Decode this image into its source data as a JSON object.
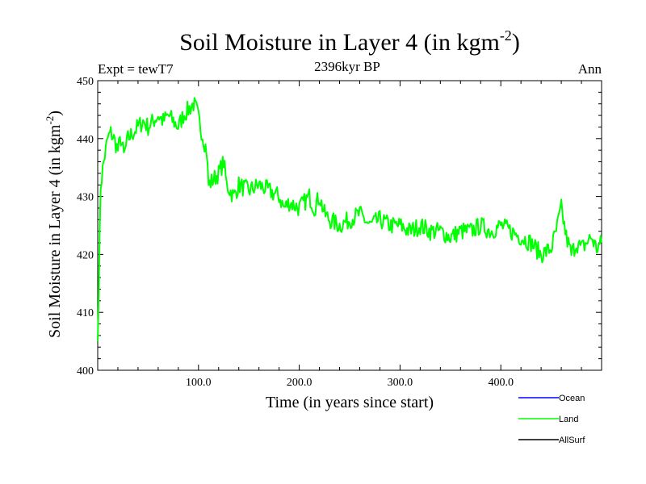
{
  "chart_data": {
    "type": "line",
    "title": "Soil Moisture in Layer 4 (in kgm",
    "title_sup": "-2",
    "title_close": ")",
    "header_left": "Expt = tewT7",
    "header_center": "2396kyr BP",
    "header_right": "Ann",
    "xlabel": "Time (in years since start)",
    "ylabel": "Soil Moisture in Layer 4 (in kgm",
    "ylabel_sup": "-2",
    "ylabel_close": ")",
    "xlim": [
      0,
      500
    ],
    "ylim": [
      400,
      450
    ],
    "xticks": [
      100,
      200,
      300,
      400
    ],
    "xtick_labels": [
      "100.0",
      "200.0",
      "300.0",
      "400.0"
    ],
    "yticks": [
      400,
      410,
      420,
      430,
      440,
      450
    ],
    "ytick_labels": [
      "400",
      "410",
      "420",
      "430",
      "440",
      "450"
    ],
    "series": [
      {
        "name": "Ocean",
        "color": "#0000ff",
        "values": []
      },
      {
        "name": "Land",
        "color": "#00ff00",
        "points": [
          [
            0,
            405
          ],
          [
            3,
            432
          ],
          [
            6,
            436
          ],
          [
            10,
            440
          ],
          [
            13,
            441
          ],
          [
            16,
            440
          ],
          [
            20,
            438
          ],
          [
            23,
            440
          ],
          [
            26,
            437
          ],
          [
            30,
            440
          ],
          [
            35,
            441
          ],
          [
            40,
            442
          ],
          [
            45,
            443
          ],
          [
            50,
            442
          ],
          [
            55,
            443
          ],
          [
            60,
            444
          ],
          [
            65,
            443
          ],
          [
            70,
            444
          ],
          [
            75,
            443
          ],
          [
            80,
            442
          ],
          [
            85,
            444
          ],
          [
            90,
            445
          ],
          [
            95,
            446
          ],
          [
            98,
            445
          ],
          [
            102,
            442
          ],
          [
            105,
            440
          ],
          [
            108,
            438
          ],
          [
            110,
            432
          ],
          [
            115,
            433
          ],
          [
            120,
            434
          ],
          [
            125,
            436
          ],
          [
            128,
            432
          ],
          [
            135,
            430
          ],
          [
            140,
            432
          ],
          [
            150,
            431
          ],
          [
            160,
            432
          ],
          [
            170,
            431
          ],
          [
            180,
            430
          ],
          [
            185,
            428
          ],
          [
            190,
            429
          ],
          [
            200,
            428
          ],
          [
            210,
            430
          ],
          [
            215,
            428
          ],
          [
            220,
            430
          ],
          [
            225,
            427
          ],
          [
            230,
            426
          ],
          [
            240,
            425
          ],
          [
            250,
            426
          ],
          [
            260,
            427
          ],
          [
            270,
            425
          ],
          [
            280,
            426
          ],
          [
            290,
            425
          ],
          [
            300,
            425
          ],
          [
            310,
            424
          ],
          [
            320,
            425
          ],
          [
            330,
            424
          ],
          [
            340,
            424
          ],
          [
            350,
            423
          ],
          [
            360,
            424
          ],
          [
            370,
            424
          ],
          [
            380,
            425
          ],
          [
            390,
            424
          ],
          [
            400,
            425
          ],
          [
            410,
            424
          ],
          [
            420,
            423
          ],
          [
            430,
            422
          ],
          [
            440,
            420
          ],
          [
            450,
            421
          ],
          [
            455,
            424
          ],
          [
            460,
            428
          ],
          [
            465,
            423
          ],
          [
            470,
            420
          ],
          [
            475,
            422
          ],
          [
            480,
            421
          ],
          [
            485,
            422
          ],
          [
            490,
            423
          ],
          [
            495,
            421
          ],
          [
            500,
            422
          ]
        ]
      },
      {
        "name": "AllSurf",
        "color": "#000000",
        "values": []
      }
    ]
  }
}
